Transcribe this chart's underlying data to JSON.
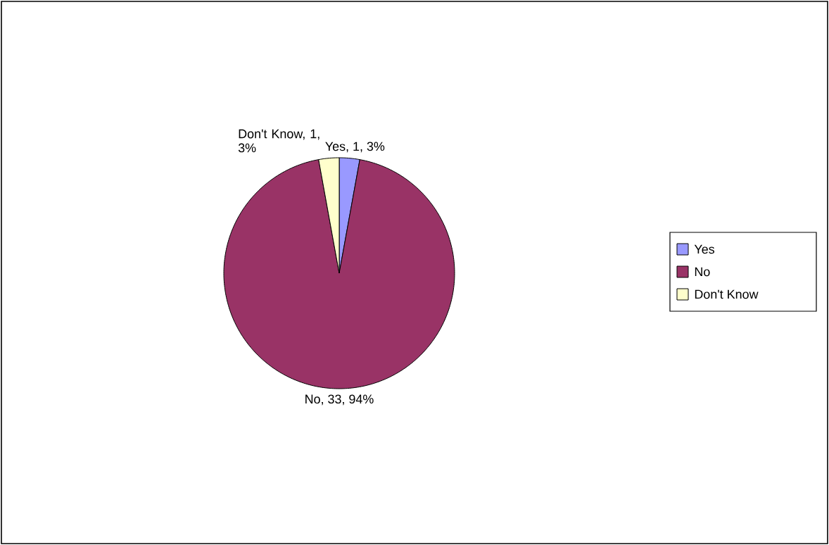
{
  "chart_data": {
    "type": "pie",
    "categories": [
      "Yes",
      "No",
      "Don't Know"
    ],
    "values": [
      1,
      33,
      1
    ],
    "colors": [
      "#9999ff",
      "#993366",
      "#ffffcc"
    ],
    "value_labels": [
      "Yes, 1, 3%",
      "No, 33, 94%",
      "Don't Know, 1, 3%"
    ],
    "legend": "right"
  }
}
